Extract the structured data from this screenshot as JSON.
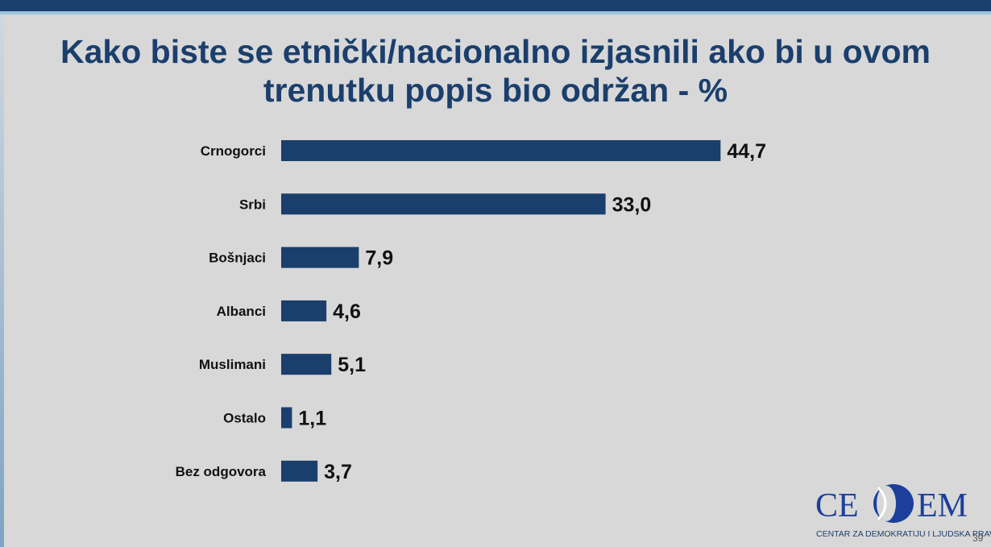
{
  "title_line1": "Kako biste se etnički/nacionalno izjasnili ako bi u ovom",
  "title_line2": "trenutku popis bio održan - %",
  "chart_data": {
    "type": "bar",
    "orientation": "horizontal",
    "categories": [
      "Crnogorci",
      "Srbi",
      "Bošnjaci",
      "Albanci",
      "Muslimani",
      "Ostalo",
      "Bez odgovora"
    ],
    "values": [
      44.7,
      33.0,
      7.9,
      4.6,
      5.1,
      1.1,
      3.7
    ],
    "value_labels": [
      "44,7",
      "33,0",
      "7,9",
      "4,6",
      "5,1",
      "1,1",
      "3,7"
    ],
    "title": "Kako biste se etnički/nacionalno izjasnili ako bi u ovom trenutku popis bio održan - %",
    "bar_color": "#1b3f6c",
    "grid": false,
    "legend": "none"
  },
  "logo": {
    "left": "CE",
    "right": "EM",
    "subtitle": "CENTAR ZA DEMOKRATIJU I LJUDSKA PRAVA",
    "color": "#1b3f9a"
  },
  "page_number": "39",
  "colors": {
    "header_band": "#1b3f6c",
    "title": "#1b3f6c",
    "background": "#d8d8d8"
  }
}
